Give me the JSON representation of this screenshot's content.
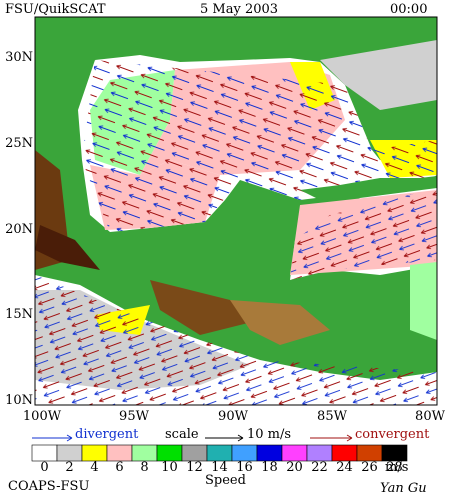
{
  "header": {
    "title": "FSU/QuikSCAT",
    "date": "5 May 2003",
    "time": "00:00"
  },
  "map": {
    "lat_labels": [
      "30N",
      "25N",
      "20N",
      "15N",
      "10N"
    ],
    "lon_labels": [
      "100W",
      "95W",
      "90W",
      "85W",
      "80W"
    ]
  },
  "legend": {
    "divergent": "divergent",
    "scale": "scale",
    "scale_value": "10 m/s",
    "convergent": "convergent"
  },
  "colorbar": {
    "labels": [
      "0",
      "2",
      "4",
      "6",
      "8",
      "10",
      "12",
      "14",
      "16",
      "18",
      "20",
      "22",
      "24",
      "26",
      "28"
    ],
    "unit": "m/s",
    "title": "Speed",
    "colors": [
      "#ffffff",
      "#d0d0d0",
      "#ffff00",
      "#ffc0c0",
      "#a0ffa0",
      "#00e000",
      "#a0a0a0",
      "#20b0b0",
      "#40a0ff",
      "#0000e0",
      "#ff40ff",
      "#b080ff",
      "#ff0000",
      "#d04000",
      "#000000"
    ]
  },
  "footer": {
    "org": "COAPS-FSU",
    "author": "Yan Gu"
  }
}
